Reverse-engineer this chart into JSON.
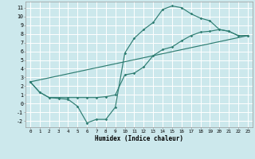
{
  "xlabel": "Humidex (Indice chaleur)",
  "bg_color": "#cce8ec",
  "grid_color": "#ffffff",
  "line_color": "#2e7d72",
  "xlim": [
    -0.5,
    23.5
  ],
  "ylim": [
    -2.7,
    11.7
  ],
  "xticks": [
    0,
    1,
    2,
    3,
    4,
    5,
    6,
    7,
    8,
    9,
    10,
    11,
    12,
    13,
    14,
    15,
    16,
    17,
    18,
    19,
    20,
    21,
    22,
    23
  ],
  "yticks": [
    -2,
    -1,
    0,
    1,
    2,
    3,
    4,
    5,
    6,
    7,
    8,
    9,
    10,
    11
  ],
  "line1_x": [
    0,
    1,
    2,
    3,
    4,
    5,
    6,
    7,
    8,
    9,
    10,
    11,
    12,
    13,
    14,
    15,
    16,
    17,
    18,
    19,
    20,
    21,
    22,
    23
  ],
  "line1_y": [
    2.5,
    1.3,
    0.7,
    0.6,
    0.5,
    -0.3,
    -2.2,
    -1.8,
    -1.8,
    -0.4,
    5.8,
    7.5,
    8.5,
    9.3,
    10.8,
    11.2,
    11.0,
    10.3,
    9.8,
    9.5,
    8.5,
    8.3,
    7.8,
    7.8
  ],
  "line2_x": [
    0,
    1,
    2,
    3,
    4,
    5,
    6,
    7,
    8,
    9,
    10,
    11,
    12,
    13,
    14,
    15,
    16,
    17,
    18,
    19,
    20,
    21,
    22,
    23
  ],
  "line2_y": [
    2.5,
    1.3,
    0.7,
    0.7,
    0.7,
    0.7,
    0.7,
    0.7,
    0.8,
    1.0,
    3.3,
    3.5,
    4.2,
    5.5,
    6.2,
    6.5,
    7.2,
    7.8,
    8.2,
    8.3,
    8.5,
    8.3,
    7.8,
    7.8
  ],
  "line3_x": [
    0,
    23
  ],
  "line3_y": [
    2.5,
    7.8
  ]
}
